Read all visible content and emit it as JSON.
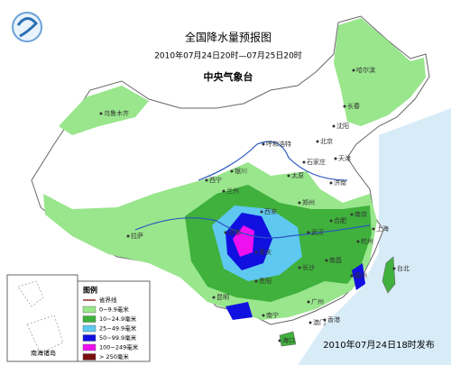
{
  "header": {
    "title": "全国降水量预报图",
    "period": "2010年07月24日20时—07月25日20时",
    "issuer": "中央气象台"
  },
  "cities": [
    {
      "label": "乌鲁木齐"
    },
    {
      "label": "哈尔滨"
    },
    {
      "label": "长春"
    },
    {
      "label": "沈阳"
    },
    {
      "label": "呼和浩特"
    },
    {
      "label": "北京"
    },
    {
      "label": "天津"
    },
    {
      "label": "石家庄"
    },
    {
      "label": "太原"
    },
    {
      "label": "济南"
    },
    {
      "label": "银川"
    },
    {
      "label": "西宁"
    },
    {
      "label": "兰州"
    },
    {
      "label": "郑州"
    },
    {
      "label": "西安"
    },
    {
      "label": "合肥"
    },
    {
      "label": "南京"
    },
    {
      "label": "上海"
    },
    {
      "label": "杭州"
    },
    {
      "label": "武汉"
    },
    {
      "label": "成都"
    },
    {
      "label": "重庆"
    },
    {
      "label": "长沙"
    },
    {
      "label": "南昌"
    },
    {
      "label": "福州"
    },
    {
      "label": "贵阳"
    },
    {
      "label": "昆明"
    },
    {
      "label": "南宁"
    },
    {
      "label": "广州"
    },
    {
      "label": "香港"
    },
    {
      "label": "澳门"
    },
    {
      "label": "海口"
    },
    {
      "label": "台北"
    },
    {
      "label": "拉萨"
    }
  ],
  "legend": {
    "title": "图例",
    "items": [
      {
        "label": "省界线",
        "color": "#8b2a2a"
      },
      {
        "label": "0~9.9毫米",
        "color": "#99e68c"
      },
      {
        "label": "10~24.9毫米",
        "color": "#3fb13c"
      },
      {
        "label": "25~49.9毫米",
        "color": "#5ec8f0"
      },
      {
        "label": "50~99.9毫米",
        "color": "#1010e0"
      },
      {
        "label": "100~249毫米",
        "color": "#ee10ee"
      },
      {
        "label": "> 250毫米",
        "color": "#7a0f0f"
      }
    ]
  },
  "inset": {
    "label": "南海诸岛"
  },
  "footer": {
    "issued": "2010年07月24日18时发布"
  }
}
